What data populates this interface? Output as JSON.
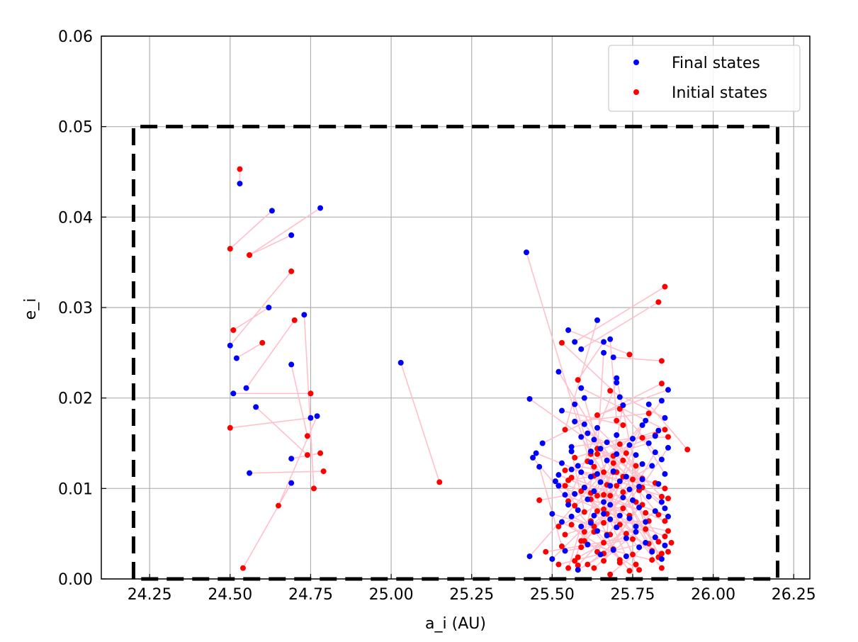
{
  "chart_data": {
    "type": "scatter",
    "xlabel": "a_i (AU)",
    "ylabel": "e_i",
    "xlim": [
      24.1,
      26.3
    ],
    "ylim": [
      0,
      0.06
    ],
    "xticks": [
      "24.25",
      "24.50",
      "24.75",
      "25.00",
      "25.25",
      "25.50",
      "25.75",
      "26.00",
      "26.25"
    ],
    "yticks": [
      "0.00",
      "0.01",
      "0.02",
      "0.03",
      "0.04",
      "0.05",
      "0.06"
    ],
    "grid": true,
    "legend": {
      "placement": "top-right",
      "entries": [
        "Final states",
        "Initial states"
      ]
    },
    "colors": {
      "final": "#0000ff",
      "initial": "#ff0000",
      "connector": "#ffc0cb",
      "boundary": "#000000"
    },
    "boundary_box": {
      "x": [
        24.2,
        26.2
      ],
      "y": [
        0,
        0.05
      ]
    },
    "series": [
      {
        "name": "Final states"
      },
      {
        "name": "Initial states"
      }
    ],
    "pairs": [
      [
        24.53,
        0.0437,
        24.53,
        0.0453
      ],
      [
        24.63,
        0.0407,
        24.5,
        0.0365
      ],
      [
        24.78,
        0.041,
        24.56,
        0.0358
      ],
      [
        24.69,
        0.038,
        24.56,
        0.0358
      ],
      [
        24.62,
        0.03,
        24.51,
        0.0275
      ],
      [
        24.73,
        0.0292,
        24.76,
        0.01
      ],
      [
        24.5,
        0.0258,
        24.69,
        0.034
      ],
      [
        24.52,
        0.0244,
        24.6,
        0.0261
      ],
      [
        24.69,
        0.0237,
        24.74,
        0.0158
      ],
      [
        24.51,
        0.0205,
        24.75,
        0.0205
      ],
      [
        24.55,
        0.0211,
        24.7,
        0.0286
      ],
      [
        24.58,
        0.019,
        24.74,
        0.0137
      ],
      [
        24.75,
        0.0178,
        24.5,
        0.0167
      ],
      [
        24.77,
        0.018,
        24.65,
        0.0081
      ],
      [
        24.69,
        0.0133,
        24.78,
        0.0139
      ],
      [
        24.56,
        0.0117,
        24.79,
        0.0119
      ],
      [
        24.69,
        0.0106,
        24.54,
        0.0012
      ],
      [
        25.03,
        0.0239,
        25.15,
        0.0107
      ],
      [
        25.42,
        0.0361,
        25.63,
        0.0114
      ],
      [
        25.43,
        0.0199,
        25.78,
        0.0111
      ],
      [
        25.43,
        0.0025,
        25.66,
        0.0118
      ],
      [
        25.55,
        0.0275,
        25.74,
        0.0248
      ],
      [
        25.57,
        0.0262,
        25.85,
        0.0323
      ],
      [
        25.59,
        0.0254,
        25.83,
        0.0306
      ],
      [
        25.64,
        0.0286,
        25.54,
        0.0165
      ],
      [
        25.66,
        0.0262,
        25.58,
        0.022
      ],
      [
        25.68,
        0.0265,
        25.7,
        0.0175
      ],
      [
        25.69,
        0.0245,
        25.84,
        0.0241
      ],
      [
        25.66,
        0.025,
        25.64,
        0.0138
      ],
      [
        25.52,
        0.0229,
        25.69,
        0.0128
      ],
      [
        25.59,
        0.0211,
        25.85,
        0.0165
      ],
      [
        25.7,
        0.0222,
        25.78,
        0.0082
      ],
      [
        25.7,
        0.0217,
        25.55,
        0.0086
      ],
      [
        25.86,
        0.0209,
        25.64,
        0.0181
      ],
      [
        25.84,
        0.0197,
        25.62,
        0.0095
      ],
      [
        25.8,
        0.0193,
        25.92,
        0.0143
      ],
      [
        25.53,
        0.0186,
        25.72,
        0.017
      ],
      [
        25.57,
        0.0174,
        25.8,
        0.0183
      ],
      [
        25.78,
        0.017,
        25.66,
        0.0062
      ],
      [
        25.6,
        0.0171,
        25.83,
        0.0071
      ],
      [
        25.61,
        0.0161,
        25.73,
        0.0139
      ],
      [
        25.64,
        0.0167,
        25.76,
        0.0125
      ],
      [
        25.7,
        0.0159,
        25.67,
        0.0049
      ],
      [
        25.75,
        0.0155,
        25.86,
        0.0157
      ],
      [
        25.82,
        0.0158,
        25.54,
        0.012
      ],
      [
        25.44,
        0.0134,
        25.66,
        0.004
      ],
      [
        25.45,
        0.0139,
        25.7,
        0.0103
      ],
      [
        25.46,
        0.0124,
        25.53,
        0.0036
      ],
      [
        25.47,
        0.015,
        25.84,
        0.0216
      ],
      [
        25.56,
        0.0141,
        25.6,
        0.0074
      ],
      [
        25.58,
        0.0125,
        25.82,
        0.0106
      ],
      [
        25.62,
        0.0129,
        25.75,
        0.0027
      ],
      [
        25.64,
        0.0116,
        25.86,
        0.0089
      ],
      [
        25.67,
        0.0131,
        25.57,
        0.002
      ],
      [
        25.69,
        0.0119,
        25.8,
        0.0039
      ],
      [
        25.73,
        0.0113,
        25.83,
        0.0024
      ],
      [
        25.76,
        0.0137,
        25.63,
        0.0052
      ],
      [
        25.78,
        0.0127,
        25.59,
        0.0035
      ],
      [
        25.52,
        0.0103,
        25.74,
        0.007
      ],
      [
        25.54,
        0.0093,
        25.85,
        0.0047
      ],
      [
        25.57,
        0.0094,
        25.46,
        0.0087
      ],
      [
        25.6,
        0.0101,
        25.71,
        0.0018
      ],
      [
        25.63,
        0.0097,
        25.79,
        0.0055
      ],
      [
        25.66,
        0.0085,
        25.52,
        0.0058
      ],
      [
        25.68,
        0.0082,
        25.84,
        0.0012
      ],
      [
        25.72,
        0.009,
        25.6,
        0.0042
      ],
      [
        25.75,
        0.0087,
        25.86,
        0.003
      ],
      [
        25.77,
        0.0079,
        25.66,
        0.0028
      ],
      [
        25.5,
        0.0072,
        25.63,
        0.0058
      ],
      [
        25.53,
        0.0063,
        25.77,
        0.001
      ],
      [
        25.56,
        0.0069,
        25.68,
        0.0049
      ],
      [
        25.59,
        0.0058,
        25.55,
        0.0012
      ],
      [
        25.62,
        0.0062,
        25.8,
        0.0064
      ],
      [
        25.64,
        0.0053,
        25.71,
        0.0021
      ],
      [
        25.67,
        0.0048,
        25.58,
        0.0015
      ],
      [
        25.7,
        0.0057,
        25.84,
        0.0028
      ],
      [
        25.73,
        0.0045,
        25.48,
        0.003
      ],
      [
        25.76,
        0.0052,
        25.63,
        0.0012
      ],
      [
        25.79,
        0.004,
        25.52,
        0.0016
      ],
      [
        25.82,
        0.0046,
        25.68,
        0.0005
      ],
      [
        25.85,
        0.0037,
        25.87,
        0.004
      ],
      [
        25.5,
        0.0022,
        25.62,
        0.0064
      ],
      [
        25.54,
        0.0031,
        25.75,
        0.0044
      ],
      [
        25.58,
        0.001,
        25.69,
        0.0033
      ],
      [
        25.61,
        0.0038,
        25.81,
        0.0021
      ],
      [
        25.65,
        0.0027,
        25.56,
        0.006
      ],
      [
        25.69,
        0.0032,
        25.74,
        0.0009
      ],
      [
        25.73,
        0.0025,
        25.67,
        0.0072
      ],
      [
        25.77,
        0.0035,
        25.62,
        0.0088
      ],
      [
        25.81,
        0.003,
        25.6,
        0.0101
      ],
      [
        25.84,
        0.0022,
        25.72,
        0.0096
      ],
      [
        25.86,
        0.0069,
        25.56,
        0.0112
      ],
      [
        25.85,
        0.0078,
        25.64,
        0.0144
      ],
      [
        25.83,
        0.0105,
        25.7,
        0.0118
      ],
      [
        25.81,
        0.0125,
        25.66,
        0.0093
      ],
      [
        25.85,
        0.0116,
        25.78,
        0.0156
      ],
      [
        25.84,
        0.0132,
        25.71,
        0.0188
      ],
      [
        25.86,
        0.0145,
        25.77,
        0.0098
      ],
      [
        25.8,
        0.015,
        25.61,
        0.013
      ],
      [
        25.85,
        0.0178,
        25.68,
        0.0208
      ],
      [
        25.83,
        0.0164,
        25.57,
        0.0134
      ],
      [
        25.79,
        0.0175,
        25.59,
        0.0097
      ],
      [
        25.72,
        0.0192,
        25.66,
        0.0077
      ],
      [
        25.71,
        0.0201,
        25.53,
        0.0261
      ],
      [
        25.6,
        0.02,
        25.71,
        0.006
      ],
      [
        25.57,
        0.0193,
        25.62,
        0.0138
      ],
      [
        25.56,
        0.0146,
        25.82,
        0.0159
      ],
      [
        25.53,
        0.0128,
        25.67,
        0.0104
      ],
      [
        25.51,
        0.0108,
        25.79,
        0.0073
      ],
      [
        25.52,
        0.0115,
        25.85,
        0.0064
      ],
      [
        25.55,
        0.0082,
        25.69,
        0.0136
      ],
      [
        25.58,
        0.0076,
        25.54,
        0.0103
      ],
      [
        25.61,
        0.0088,
        25.63,
        0.0124
      ],
      [
        25.63,
        0.007,
        25.76,
        0.0085
      ],
      [
        25.66,
        0.0072,
        25.73,
        0.005
      ],
      [
        25.68,
        0.0066,
        25.86,
        0.0053
      ],
      [
        25.71,
        0.007,
        25.54,
        0.0049
      ],
      [
        25.74,
        0.0067,
        25.66,
        0.002
      ],
      [
        25.76,
        0.0058,
        25.83,
        0.0041
      ],
      [
        25.79,
        0.0063,
        25.58,
        0.0024
      ],
      [
        25.82,
        0.0075,
        25.61,
        0.0016
      ],
      [
        25.84,
        0.0085,
        25.75,
        0.011
      ],
      [
        25.8,
        0.0091,
        25.71,
        0.0149
      ],
      [
        25.77,
        0.0102,
        25.64,
        0.003
      ],
      [
        25.74,
        0.0099,
        25.59,
        0.0042
      ],
      [
        25.71,
        0.0108,
        25.68,
        0.0092
      ],
      [
        25.68,
        0.0103,
        25.57,
        0.0081
      ],
      [
        25.65,
        0.0107,
        25.72,
        0.0131
      ],
      [
        25.62,
        0.0113,
        25.55,
        0.0109
      ],
      [
        25.59,
        0.0118,
        25.64,
        0.0075
      ],
      [
        25.56,
        0.0121,
        25.85,
        0.01
      ],
      [
        25.65,
        0.0144,
        25.72,
        0.0113
      ],
      [
        25.63,
        0.0154,
        25.69,
        0.0118
      ],
      [
        25.74,
        0.0148,
        25.64,
        0.0092
      ],
      [
        25.59,
        0.0157,
        25.81,
        0.0031
      ],
      [
        25.62,
        0.0141,
        25.76,
        0.0016
      ],
      [
        25.67,
        0.0151,
        25.84,
        0.0091
      ],
      [
        25.7,
        0.0138,
        25.78,
        0.0101
      ],
      [
        25.82,
        0.014,
        25.72,
        0.0078
      ],
      [
        25.78,
        0.011,
        25.6,
        0.0052
      ]
    ]
  }
}
